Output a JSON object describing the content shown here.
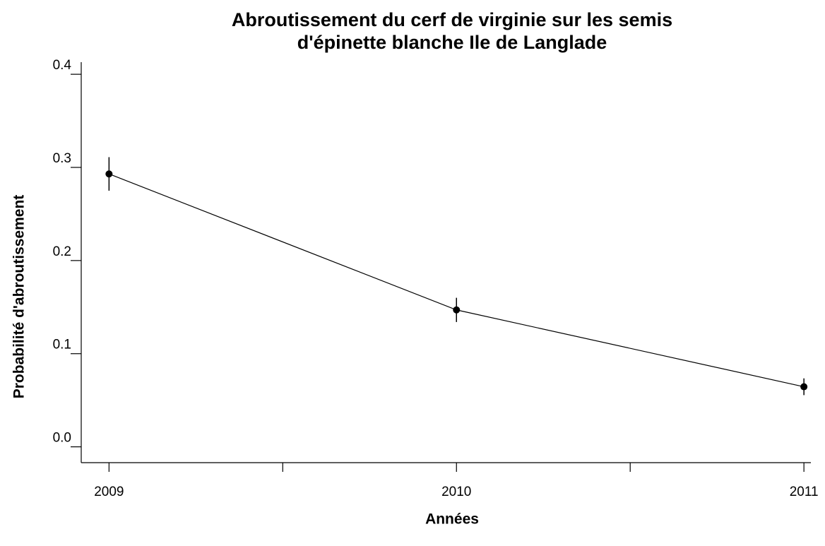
{
  "chart_data": {
    "type": "line",
    "title": [
      "Abroutissement du cerf de virginie sur les semis",
      "d'épinette blanche Ile de Langlade"
    ],
    "x_label": "Années",
    "y_label": "Probabilité d'abroutissement",
    "x": [
      2009,
      2010,
      2011
    ],
    "series": [
      {
        "color": "#000000",
        "values": [
          0.293,
          0.147,
          0.0645
        ],
        "errors": [
          0.018,
          0.013,
          0.009
        ]
      }
    ],
    "xlim": [
      2008.92,
      2011.02
    ],
    "xticks": [
      2009,
      2010,
      2011
    ],
    "xminor_ticks": [
      2009.5,
      2010.5
    ],
    "ylim": [
      -0.017,
      0.413
    ],
    "yticks": [
      {
        "value": 0,
        "label": "0.0"
      },
      0.1,
      0.2,
      0.3,
      0.4
    ]
  }
}
